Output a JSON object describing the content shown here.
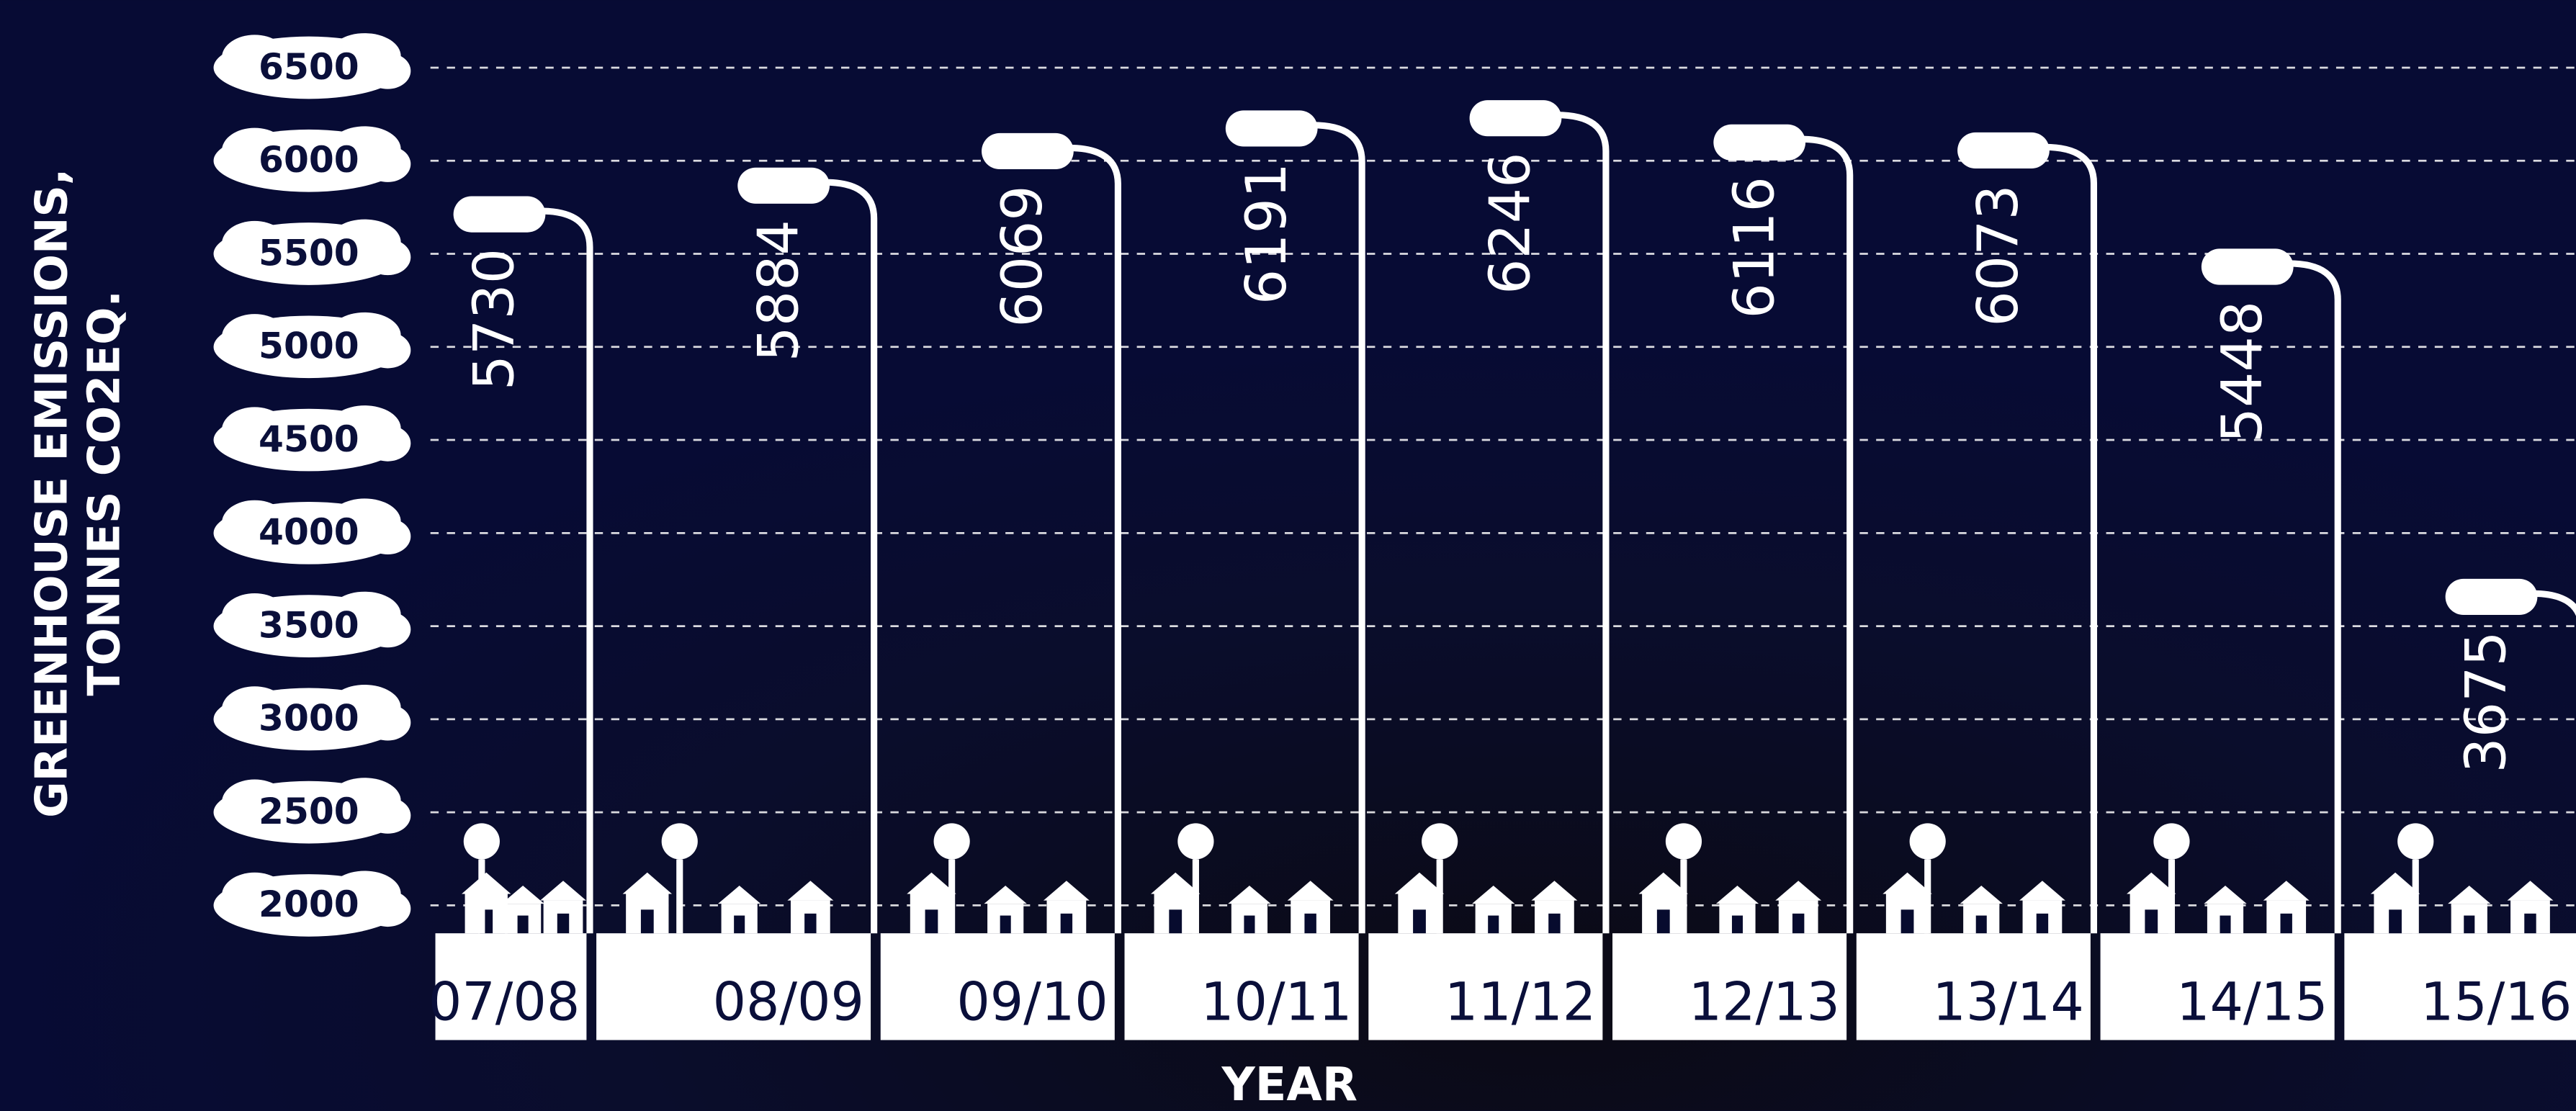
{
  "chart_data": {
    "type": "bar",
    "y_label": [
      "GREENHOUSE EMISSIONS,",
      "TONNES CO2EQ."
    ],
    "x_label": "YEAR",
    "categories": [
      "07/08",
      "08/09",
      "09/10",
      "10/11",
      "11/12",
      "12/13",
      "13/14",
      "14/15",
      "15/16"
    ],
    "values": [
      5730,
      5884,
      6069,
      6191,
      6246,
      6116,
      6073,
      5448,
      3675
    ],
    "color": "#ffffff",
    "ylim": [
      2000,
      6500
    ],
    "yticks": [
      2000,
      2500,
      3000,
      3500,
      4000,
      4500,
      5000,
      5500,
      6000,
      6500
    ],
    "grid": true
  }
}
